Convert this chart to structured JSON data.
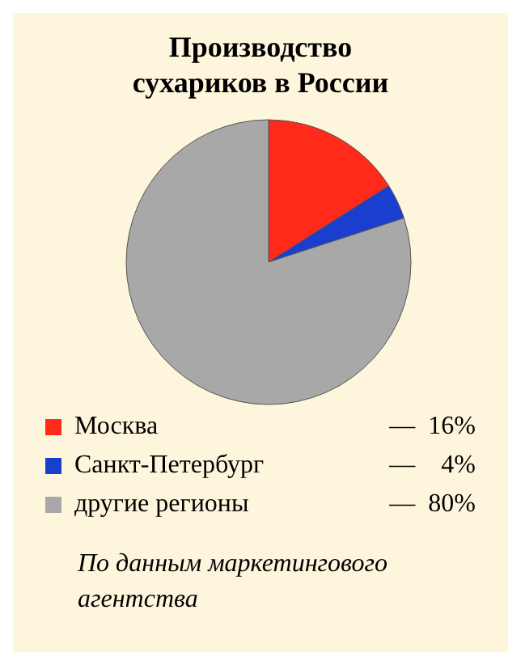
{
  "chart_data": {
    "type": "pie",
    "title": "Производство\nсухариков в России",
    "categories": [
      "Москва",
      "Санкт-Петербург",
      "другие регионы"
    ],
    "values": [
      16,
      4,
      80
    ],
    "value_labels": [
      "—  16%",
      "—    4%",
      "—  80%"
    ],
    "colors": [
      "#ff2a1a",
      "#1a3fd0",
      "#a8a8a8"
    ],
    "legend": "bottom",
    "annotations": [
      "По данным маркетингового агентства"
    ]
  }
}
